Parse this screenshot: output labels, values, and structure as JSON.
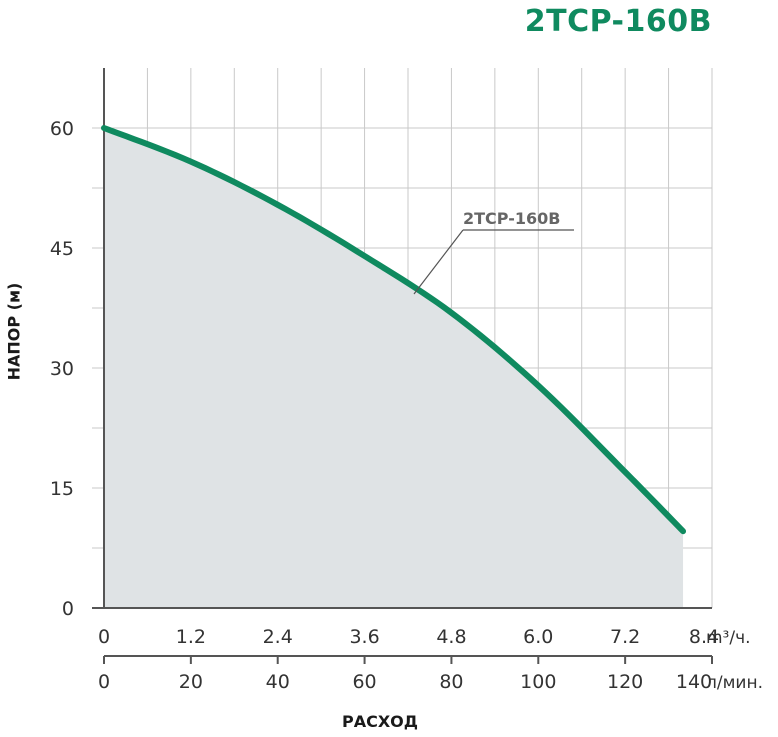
{
  "chart_data": {
    "type": "area",
    "title": "2TCP-160B",
    "ylabel": "НАПОР (м)",
    "xlabel": "РАСХОД",
    "ylim": [
      0,
      60
    ],
    "yticks": [
      "0",
      "15",
      "30",
      "45",
      "60"
    ],
    "x_axis_m3h": {
      "lim": [
        0,
        8.4
      ],
      "ticks": [
        "0",
        "1.2",
        "2.4",
        "3.6",
        "4.8",
        "6.0",
        "7.2",
        "8.4"
      ],
      "unit": "m³/ч."
    },
    "x_axis_lmin": {
      "lim": [
        0,
        140
      ],
      "ticks": [
        "0",
        "20",
        "40",
        "60",
        "80",
        "100",
        "120",
        "140"
      ],
      "unit": "л/мин."
    },
    "grid": true,
    "series": [
      {
        "name": "2TCP-160B",
        "color": "#0f8a5f",
        "fill": "#dfe3e5",
        "x": [
          0,
          1.2,
          2.4,
          3.6,
          4.8,
          6.0,
          7.2,
          8.0
        ],
        "y": [
          60,
          55.8,
          50.4,
          44.0,
          36.9,
          27.8,
          17.0,
          9.6
        ]
      }
    ]
  }
}
